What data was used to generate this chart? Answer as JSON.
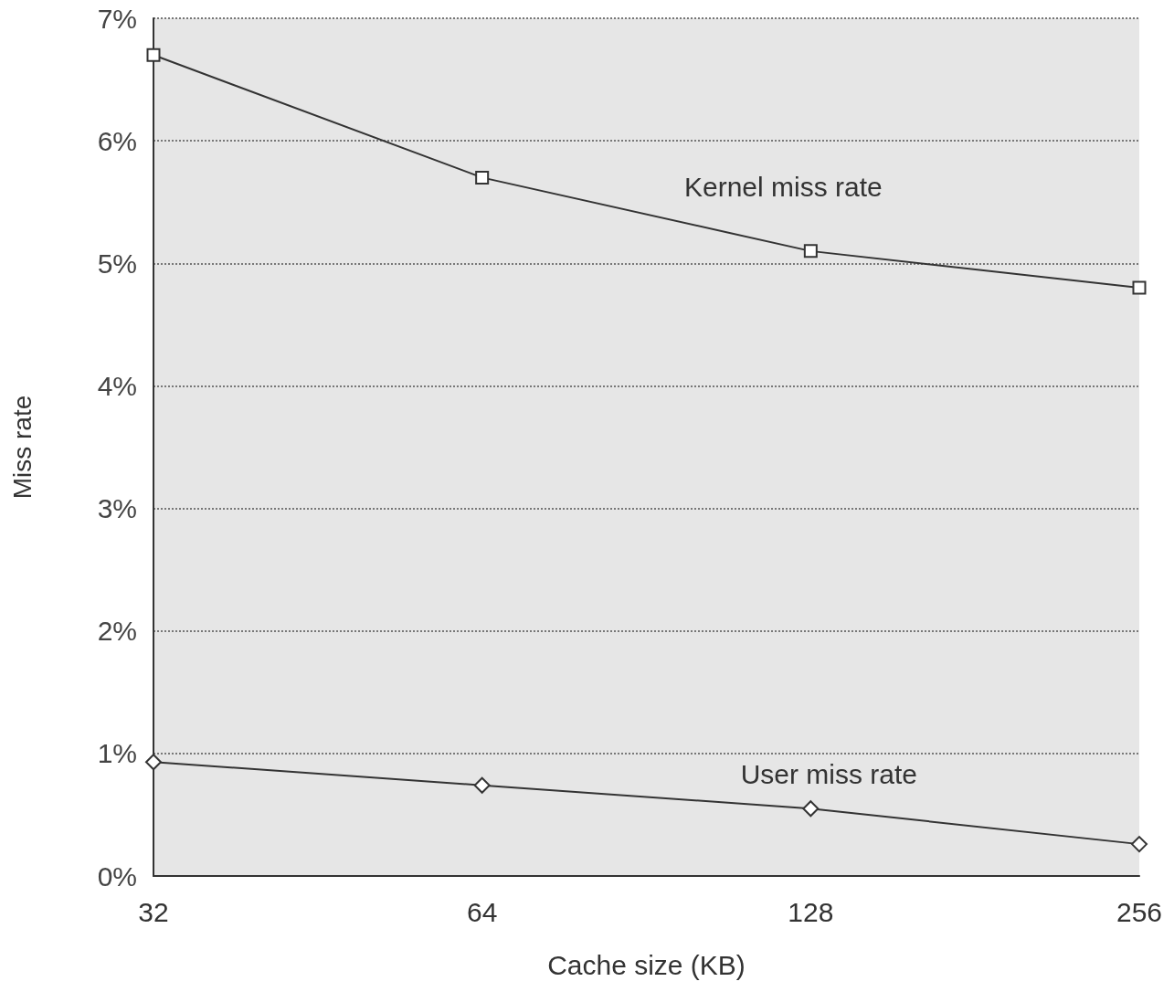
{
  "chart_data": {
    "type": "line",
    "xlabel": "Cache size (KB)",
    "ylabel": "Miss rate",
    "categories": [
      "32",
      "64",
      "128",
      "256"
    ],
    "series": [
      {
        "name": "Kernel miss rate",
        "color": "#333333",
        "marker": "square",
        "values": [
          6.7,
          5.7,
          5.1,
          4.8
        ]
      },
      {
        "name": "User miss rate",
        "color": "#333333",
        "marker": "diamond",
        "values": [
          0.93,
          0.74,
          0.55,
          0.26
        ]
      }
    ],
    "ylim": [
      0,
      7
    ],
    "yticks": [
      {
        "value": 0,
        "label": "0%"
      },
      {
        "value": 1,
        "label": "1%"
      },
      {
        "value": 2,
        "label": "2%"
      },
      {
        "value": 3,
        "label": "3%"
      },
      {
        "value": 4,
        "label": "4%"
      },
      {
        "value": 5,
        "label": "5%"
      },
      {
        "value": 6,
        "label": "6%"
      },
      {
        "value": 7,
        "label": "7%"
      }
    ],
    "grid": "y",
    "line_style": "solid",
    "legend": false
  }
}
